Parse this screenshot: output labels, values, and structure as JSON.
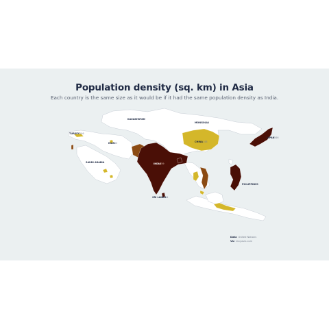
{
  "title": "Population density (sq. km) in Asia",
  "subtitle": "Each country is the same size as it would be if it had the same population density as India.",
  "colors": {
    "background": "#ebf0f1",
    "land": "#ffffff",
    "border": "#c8ced6",
    "low": "#d4b72a",
    "medium": "#8b4a12",
    "high": "#4a0f06"
  },
  "labels": [
    {
      "name": "KAZAKHSTAN",
      "value": "7"
    },
    {
      "name": "MONGOLIA",
      "value": "2"
    },
    {
      "name": "TURKEY",
      "value": "106"
    },
    {
      "name": "IRAN",
      "value": "50"
    },
    {
      "name": "CHINA",
      "value": "148"
    },
    {
      "name": "JAPAN",
      "value": "346"
    },
    {
      "name": "SAUDI ARABIA",
      "value": "16"
    },
    {
      "name": "INDIA",
      "value": "459"
    },
    {
      "name": "PHILIPPINES",
      "value": "365"
    },
    {
      "name": "SRI LANKA",
      "value": "354"
    }
  ],
  "credits": {
    "data_label": "Data",
    "data_value": "United Nations",
    "viz_label": "Viz",
    "viz_value": "tanyaviz.com"
  }
}
